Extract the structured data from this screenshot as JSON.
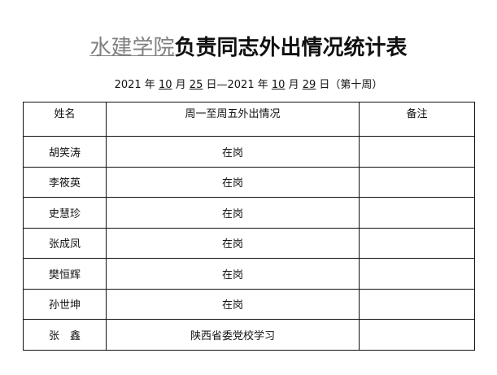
{
  "title": {
    "prefix": "水建学院",
    "main": "负责同志外出情况统计表"
  },
  "date_line": {
    "y1": "2021",
    "w1": "年",
    "m1": "10",
    "mw1": "月",
    "d1": "25",
    "dw1": "日—",
    "y2": "2021",
    "w2": "年",
    "m2": "10",
    "mw2": "月",
    "d2": "29",
    "dw2": "日（第十周）"
  },
  "table": {
    "headers": [
      "姓名",
      "周一至周五外出情况",
      "备注"
    ],
    "rows": [
      {
        "name": "胡笑涛",
        "status": "在岗",
        "note": ""
      },
      {
        "name": "李筱英",
        "status": "在岗",
        "note": ""
      },
      {
        "name": "史慧珍",
        "status": "在岗",
        "note": ""
      },
      {
        "name": "张成凤",
        "status": "在岗",
        "note": ""
      },
      {
        "name": "樊恒辉",
        "status": "在岗",
        "note": ""
      },
      {
        "name": "孙世坤",
        "status": "在岗",
        "note": ""
      },
      {
        "name": "张　鑫",
        "status": "陕西省委党校学习",
        "note": ""
      }
    ]
  }
}
